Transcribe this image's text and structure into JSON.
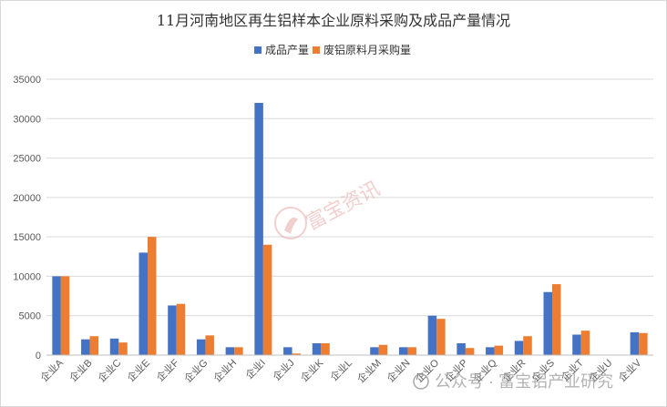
{
  "chart_data": {
    "type": "bar",
    "title": "11月河南地区再生铝样本企业原料采购及成品产量情况",
    "categories": [
      "企业A",
      "企业B",
      "企业C",
      "企业E",
      "企业F",
      "企业G",
      "企业H",
      "企业I",
      "企业J",
      "企业K",
      "企业L",
      "企业M",
      "企业N",
      "企业O",
      "企业P",
      "企业Q",
      "企业R",
      "企业S",
      "企业T",
      "企业U",
      "企业V"
    ],
    "series": [
      {
        "name": "成品产量",
        "color": "#4472C4",
        "values": [
          10000,
          2000,
          2100,
          13000,
          6300,
          2000,
          1000,
          32000,
          1000,
          1500,
          0,
          1000,
          1000,
          5000,
          1500,
          1000,
          1800,
          8000,
          2600,
          0,
          2900
        ]
      },
      {
        "name": "废铝原料月采购量",
        "color": "#ED7D31",
        "values": [
          10000,
          2400,
          1600,
          15000,
          6500,
          2500,
          1000,
          14000,
          200,
          1500,
          0,
          1300,
          1000,
          4600,
          900,
          1200,
          2400,
          9000,
          3100,
          0,
          2800
        ]
      }
    ],
    "yticks": [
      "0",
      "5000",
      "10000",
      "15000",
      "20000",
      "25000",
      "30000",
      "35000"
    ],
    "ylim": [
      0,
      35000
    ],
    "legend_position": "top-center",
    "grid": true
  },
  "watermark": {
    "center_text": "富宝资讯",
    "bottom_text": "公众号 · 富宝铝产业研究"
  }
}
